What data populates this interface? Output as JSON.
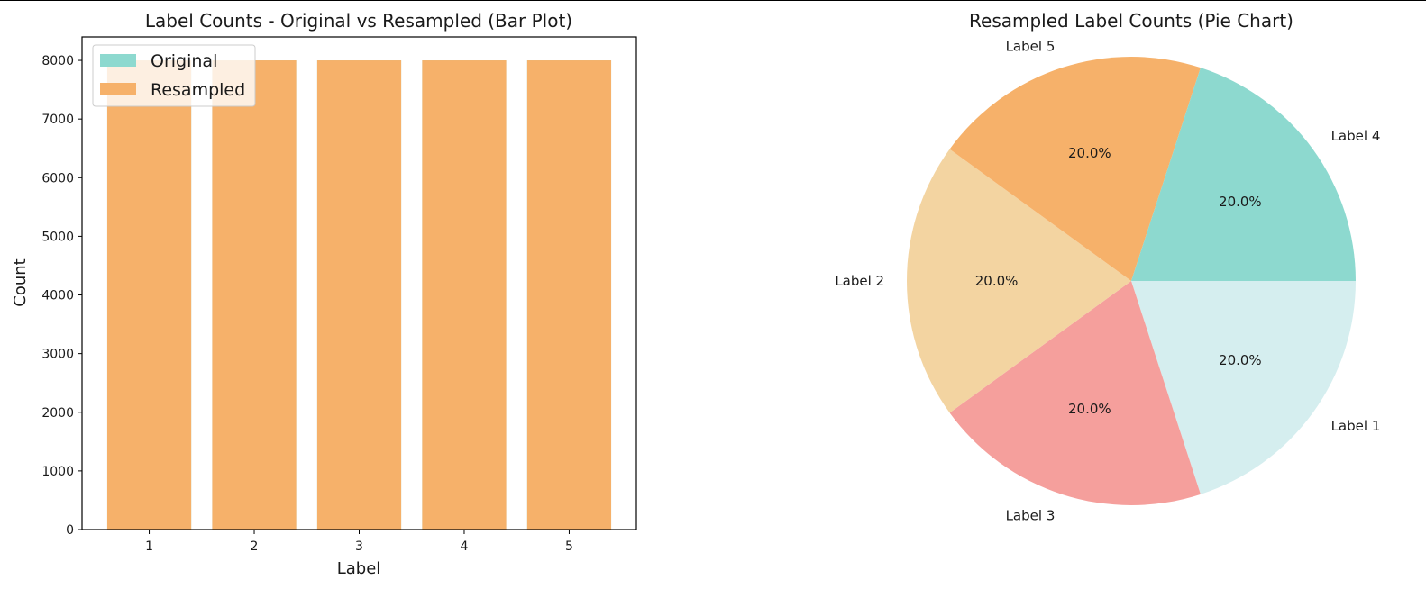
{
  "chart_data": [
    {
      "type": "bar",
      "title": "Label Counts - Original vs Resampled (Bar Plot)",
      "xlabel": "Label",
      "ylabel": "Count",
      "categories": [
        "1",
        "2",
        "3",
        "4",
        "5"
      ],
      "ylim": [
        0,
        8400
      ],
      "yticks": [
        0,
        1000,
        2000,
        3000,
        4000,
        5000,
        6000,
        7000,
        8000
      ],
      "series": [
        {
          "name": "Original",
          "color": "#8dd9cf",
          "values": [
            8000,
            8000,
            8000,
            8000,
            8000
          ]
        },
        {
          "name": "Resampled",
          "color": "#f6b16a",
          "values": [
            8000,
            8000,
            8000,
            8000,
            8000
          ]
        }
      ],
      "legend": {
        "placement": "upper-left"
      },
      "grid": false
    },
    {
      "type": "pie",
      "title": "Resampled Label Counts (Pie Chart)",
      "slices": [
        {
          "label": "Label 1",
          "value": 8000,
          "pct_label": "20.0%",
          "color": "#d5eeef"
        },
        {
          "label": "Label 3",
          "value": 8000,
          "pct_label": "20.0%",
          "color": "#f59f9c"
        },
        {
          "label": "Label 2",
          "value": 8000,
          "pct_label": "20.0%",
          "color": "#f3d4a1"
        },
        {
          "label": "Label 5",
          "value": 8000,
          "pct_label": "20.0%",
          "color": "#f6b16a"
        },
        {
          "label": "Label 4",
          "value": 8000,
          "pct_label": "20.0%",
          "color": "#8dd9cf"
        }
      ],
      "start_angle_deg": 0,
      "direction": "counterclockwise-from-east-in-reading-order"
    }
  ]
}
